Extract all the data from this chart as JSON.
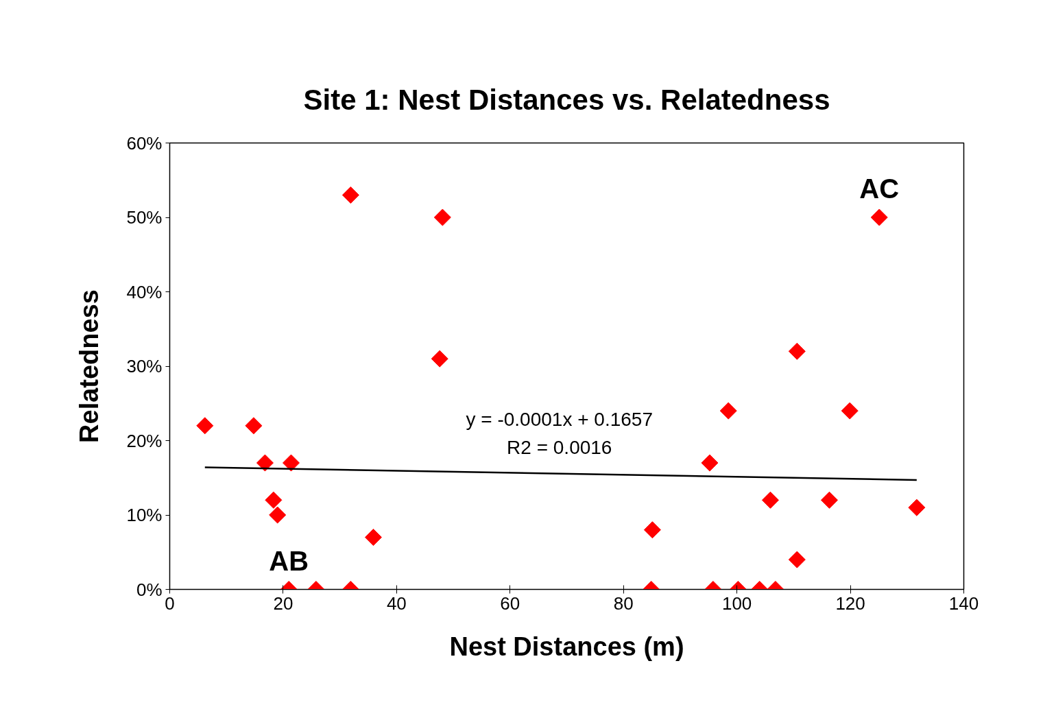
{
  "chart_data": {
    "type": "scatter",
    "title": "Site 1: Nest Distances vs. Relatedness",
    "xlabel": "Nest Distances (m)",
    "ylabel": "Relatedness",
    "xlim": [
      0,
      140
    ],
    "xticks": [
      0,
      20,
      40,
      60,
      80,
      100,
      120,
      140
    ],
    "ylim": [
      0,
      60
    ],
    "yticks": [
      {
        "value": 0,
        "label": "0%"
      },
      {
        "value": 10,
        "label": "10%"
      },
      {
        "value": 20,
        "label": "20%"
      },
      {
        "value": 30,
        "label": "30%"
      },
      {
        "value": 40,
        "label": "40%"
      },
      {
        "value": 50,
        "label": "50%"
      },
      {
        "value": 60,
        "label": "60%"
      }
    ],
    "grid": false,
    "marker": "diamond",
    "series": [
      {
        "color": "#ff0000",
        "x": [
          6.2,
          14.8,
          16.8,
          21.4,
          18.3,
          19.0,
          21.0,
          25.8,
          31.9,
          31.9,
          35.9,
          48.1,
          47.6,
          85.1,
          84.9,
          95.2,
          95.8,
          98.5,
          100.2,
          104.0,
          106.8,
          105.9,
          110.6,
          110.6,
          116.3,
          119.9,
          125.1,
          131.7
        ],
        "values": [
          22,
          22,
          17,
          17,
          12,
          10,
          0,
          0,
          0,
          53,
          7,
          50,
          31,
          8,
          0,
          17,
          0,
          24,
          0,
          0,
          0,
          12,
          32,
          4,
          12,
          24,
          50,
          11
        ]
      },
      {
        "type": "line",
        "color": "#000000",
        "x": [
          6.2,
          131.7
        ],
        "values": [
          16.4,
          14.7
        ],
        "line_style": "solid",
        "marker": "none"
      }
    ],
    "annotations": [
      {
        "text": "AB",
        "x": 21.0,
        "y": 0
      },
      {
        "text": "AC",
        "x": 125.1,
        "y": 50
      },
      "y = -0.0001x + 0.1657",
      "R2 = 0.0016"
    ]
  }
}
